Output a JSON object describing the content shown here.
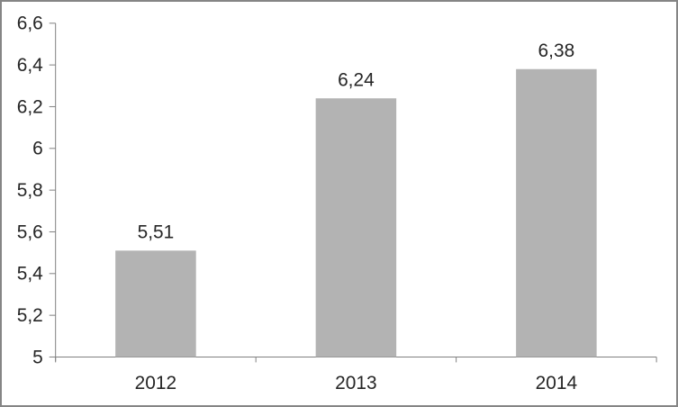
{
  "chart_data": {
    "type": "bar",
    "categories": [
      "2012",
      "2013",
      "2014"
    ],
    "values": [
      5.51,
      6.24,
      6.38
    ],
    "value_labels": [
      "5,51",
      "6,24",
      "6,38"
    ],
    "y_axis": {
      "min": 5,
      "max": 6.6,
      "step": 0.2,
      "tick_labels": [
        "5",
        "5,2",
        "5,4",
        "5,6",
        "5,8",
        "6",
        "6,2",
        "6,4",
        "6,6"
      ]
    },
    "decimal_separator": ",",
    "grid": "off",
    "legend": "none",
    "colors": {
      "bar_fill": "#b3b3b3",
      "axis_line": "#808080",
      "tick_line": "#808080",
      "label_text": "#262626",
      "frame_border": "#858585",
      "background": "#ffffff"
    }
  }
}
